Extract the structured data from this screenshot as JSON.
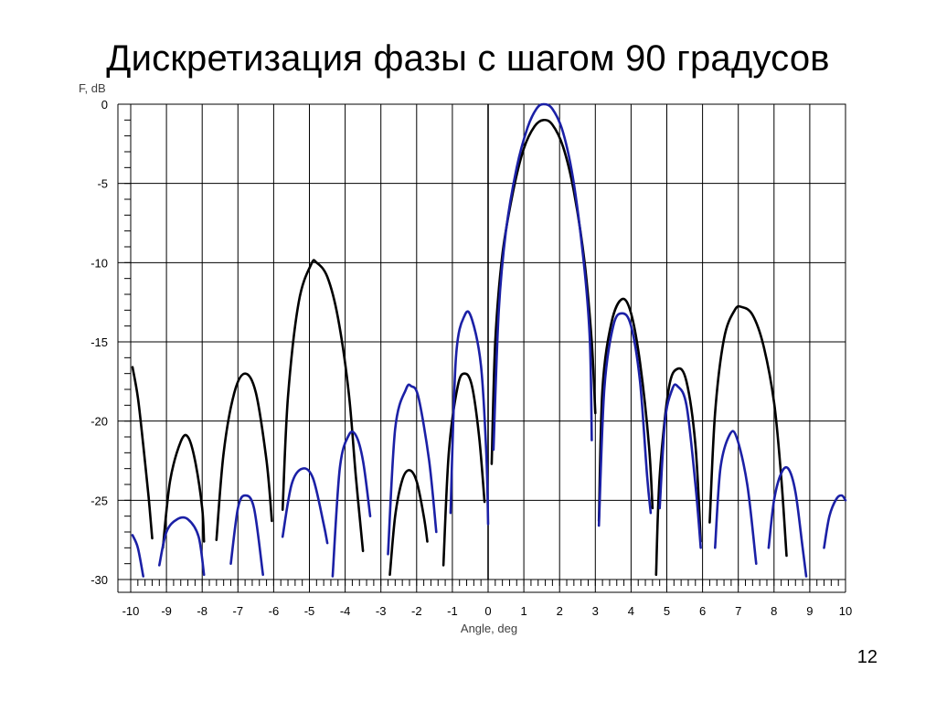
{
  "slide": {
    "title": "Дискретизация фазы с шагом 90 градусов",
    "page_number": "12"
  },
  "chart_data": {
    "type": "line",
    "title": "",
    "xlabel": "Angle, deg",
    "ylabel": "F, dB",
    "xlim": [
      -10,
      10
    ],
    "ylim": [
      -30,
      0
    ],
    "x_ticks": [
      -10,
      -9,
      -8,
      -7,
      -6,
      -5,
      -4,
      -3,
      -2,
      -1,
      0,
      1,
      2,
      3,
      4,
      5,
      6,
      7,
      8,
      9,
      10
    ],
    "y_ticks": [
      0,
      -5,
      -10,
      -15,
      -20,
      -25,
      -30
    ],
    "x_minor_step": 0.2,
    "y_minor_step": 1,
    "grid": true,
    "legend": "none",
    "series": [
      {
        "color": "#000000",
        "lobes": [
          [
            [
              -9.95,
              -16.6
            ],
            [
              -9.8,
              -18.5
            ],
            [
              -9.65,
              -21.5
            ],
            [
              -9.5,
              -24.8
            ],
            [
              -9.4,
              -27.4
            ]
          ],
          [
            [
              -9.1,
              -28.0
            ],
            [
              -8.9,
              -23.8
            ],
            [
              -8.6,
              -21.3
            ],
            [
              -8.4,
              -21.0
            ],
            [
              -8.2,
              -22.5
            ],
            [
              -8.0,
              -25.5
            ],
            [
              -7.95,
              -27.6
            ]
          ],
          [
            [
              -7.6,
              -27.5
            ],
            [
              -7.4,
              -22.0
            ],
            [
              -7.1,
              -18.2
            ],
            [
              -6.8,
              -17.0
            ],
            [
              -6.5,
              -18.2
            ],
            [
              -6.2,
              -22.5
            ],
            [
              -6.05,
              -26.3
            ]
          ],
          [
            [
              -5.75,
              -25.6
            ],
            [
              -5.6,
              -18.5
            ],
            [
              -5.3,
              -12.5
            ],
            [
              -4.95,
              -10.1
            ],
            [
              -4.8,
              -10.0
            ],
            [
              -4.5,
              -10.9
            ],
            [
              -4.2,
              -13.5
            ],
            [
              -3.9,
              -18.2
            ],
            [
              -3.7,
              -23.5
            ],
            [
              -3.5,
              -28.2
            ]
          ],
          [
            [
              -2.75,
              -29.7
            ],
            [
              -2.6,
              -26.0
            ],
            [
              -2.4,
              -23.7
            ],
            [
              -2.2,
              -23.1
            ],
            [
              -2.0,
              -23.8
            ],
            [
              -1.8,
              -26.0
            ],
            [
              -1.7,
              -27.6
            ]
          ],
          [
            [
              -1.25,
              -29.1
            ],
            [
              -1.1,
              -22.0
            ],
            [
              -0.85,
              -17.8
            ],
            [
              -0.65,
              -17.0
            ],
            [
              -0.45,
              -17.8
            ],
            [
              -0.25,
              -21.0
            ],
            [
              -0.1,
              -25.1
            ]
          ],
          [
            [
              0.1,
              -22.7
            ],
            [
              0.2,
              -15.0
            ],
            [
              0.4,
              -9.5
            ],
            [
              0.7,
              -5.5
            ],
            [
              1.0,
              -2.8
            ],
            [
              1.3,
              -1.4
            ],
            [
              1.55,
              -1.0
            ],
            [
              1.8,
              -1.3
            ],
            [
              2.1,
              -2.7
            ],
            [
              2.4,
              -5.5
            ],
            [
              2.7,
              -10.0
            ],
            [
              2.9,
              -15.0
            ],
            [
              3.0,
              -19.5
            ]
          ],
          [
            [
              3.1,
              -26.3
            ],
            [
              3.2,
              -18.0
            ],
            [
              3.45,
              -13.8
            ],
            [
              3.75,
              -12.3
            ],
            [
              4.0,
              -13.2
            ],
            [
              4.25,
              -16.3
            ],
            [
              4.5,
              -21.5
            ],
            [
              4.6,
              -25.5
            ]
          ],
          [
            [
              4.7,
              -29.7
            ],
            [
              4.8,
              -23.5
            ],
            [
              5.05,
              -18.0
            ],
            [
              5.3,
              -16.7
            ],
            [
              5.55,
              -17.5
            ],
            [
              5.8,
              -21.5
            ],
            [
              5.95,
              -27.6
            ]
          ],
          [
            [
              6.2,
              -26.4
            ],
            [
              6.35,
              -19.5
            ],
            [
              6.6,
              -14.8
            ],
            [
              6.9,
              -13.0
            ],
            [
              7.1,
              -12.8
            ],
            [
              7.4,
              -13.3
            ],
            [
              7.7,
              -15.2
            ],
            [
              8.0,
              -18.8
            ],
            [
              8.2,
              -23.5
            ],
            [
              8.35,
              -28.5
            ]
          ]
        ]
      },
      {
        "color": "#1b20a6",
        "lobes": [
          [
            [
              -9.95,
              -27.2
            ],
            [
              -9.8,
              -28.0
            ],
            [
              -9.65,
              -29.8
            ]
          ],
          [
            [
              -9.2,
              -29.1
            ],
            [
              -9.0,
              -27.0
            ],
            [
              -8.7,
              -26.2
            ],
            [
              -8.4,
              -26.2
            ],
            [
              -8.1,
              -27.3
            ],
            [
              -7.95,
              -29.7
            ]
          ],
          [
            [
              -7.2,
              -29.0
            ],
            [
              -7.0,
              -25.5
            ],
            [
              -6.8,
              -24.7
            ],
            [
              -6.55,
              -25.5
            ],
            [
              -6.3,
              -29.7
            ]
          ],
          [
            [
              -5.75,
              -27.3
            ],
            [
              -5.5,
              -24.0
            ],
            [
              -5.2,
              -23.0
            ],
            [
              -4.9,
              -23.6
            ],
            [
              -4.6,
              -26.5
            ],
            [
              -4.5,
              -27.7
            ]
          ],
          [
            [
              -4.35,
              -29.8
            ],
            [
              -4.15,
              -23.0
            ],
            [
              -3.9,
              -20.9
            ],
            [
              -3.7,
              -20.9
            ],
            [
              -3.5,
              -22.5
            ],
            [
              -3.3,
              -26.0
            ]
          ],
          [
            [
              -2.8,
              -28.4
            ],
            [
              -2.6,
              -20.5
            ],
            [
              -2.3,
              -18.0
            ],
            [
              -2.15,
              -17.8
            ],
            [
              -1.95,
              -18.5
            ],
            [
              -1.65,
              -22.5
            ],
            [
              -1.45,
              -27.0
            ]
          ],
          [
            [
              -1.05,
              -25.8
            ],
            [
              -0.9,
              -16.0
            ],
            [
              -0.65,
              -13.3
            ],
            [
              -0.45,
              -13.6
            ],
            [
              -0.2,
              -16.5
            ],
            [
              -0.05,
              -22.0
            ],
            [
              0.0,
              -26.5
            ]
          ],
          [
            [
              0.15,
              -21.8
            ],
            [
              0.3,
              -13.0
            ],
            [
              0.5,
              -8.0
            ],
            [
              0.8,
              -4.0
            ],
            [
              1.1,
              -1.5
            ],
            [
              1.35,
              -0.3
            ],
            [
              1.55,
              0.0
            ],
            [
              1.8,
              -0.3
            ],
            [
              2.1,
              -1.8
            ],
            [
              2.4,
              -5.0
            ],
            [
              2.7,
              -10.5
            ],
            [
              2.85,
              -15.0
            ],
            [
              2.9,
              -21.2
            ]
          ],
          [
            [
              3.1,
              -26.6
            ],
            [
              3.25,
              -18.0
            ],
            [
              3.5,
              -14.0
            ],
            [
              3.75,
              -13.2
            ],
            [
              4.0,
              -14.0
            ],
            [
              4.25,
              -17.5
            ],
            [
              4.45,
              -23.5
            ],
            [
              4.55,
              -25.8
            ]
          ],
          [
            [
              4.8,
              -25.5
            ],
            [
              4.95,
              -20.0
            ],
            [
              5.15,
              -18.0
            ],
            [
              5.3,
              -17.8
            ],
            [
              5.55,
              -19.0
            ],
            [
              5.8,
              -24.0
            ],
            [
              5.95,
              -28.0
            ]
          ],
          [
            [
              6.35,
              -28.0
            ],
            [
              6.5,
              -23.0
            ],
            [
              6.75,
              -20.9
            ],
            [
              6.95,
              -21.0
            ],
            [
              7.25,
              -24.0
            ],
            [
              7.5,
              -29.0
            ]
          ],
          [
            [
              7.85,
              -28.0
            ],
            [
              8.0,
              -25.0
            ],
            [
              8.2,
              -23.3
            ],
            [
              8.4,
              -23.0
            ],
            [
              8.6,
              -24.5
            ],
            [
              8.8,
              -28.0
            ],
            [
              8.9,
              -29.8
            ]
          ],
          [
            [
              9.4,
              -28.0
            ],
            [
              9.55,
              -26.0
            ],
            [
              9.75,
              -24.9
            ],
            [
              9.9,
              -24.7
            ],
            [
              10.0,
              -25.0
            ]
          ]
        ]
      }
    ]
  }
}
